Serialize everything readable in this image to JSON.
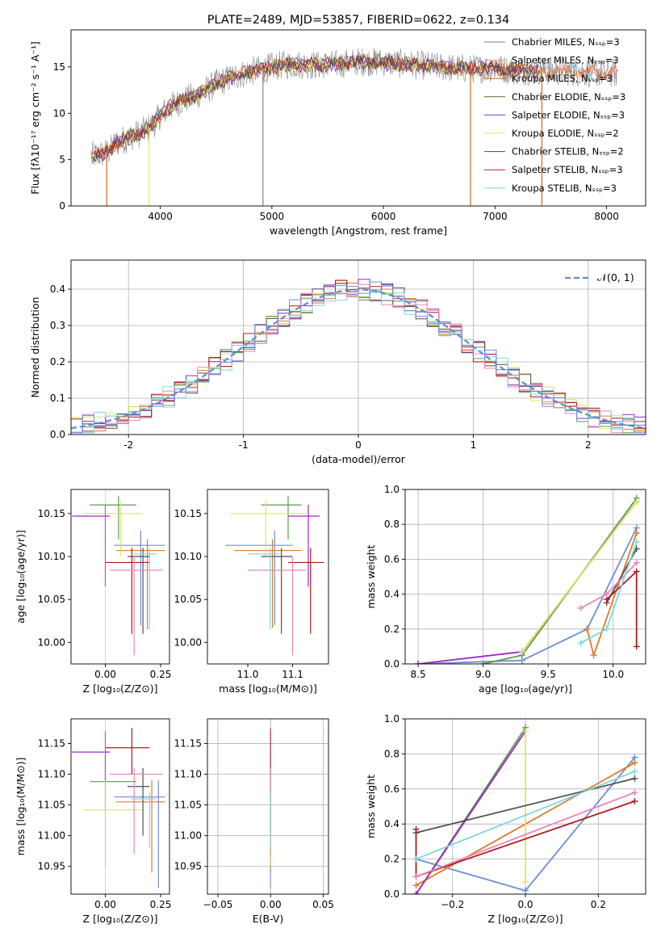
{
  "colors": {
    "c_miles": "#808080",
    "s_miles": "#fa8072",
    "k_miles": "#d2691e",
    "c_elodie": "#556b2f",
    "s_elodie": "#9932cc",
    "k_elodie": "#dfe766",
    "c_stelib": "#4d4d4d",
    "s_stelib": "#b22222",
    "k_stelib": "#7fd3de",
    "blue": "#6b8fd6",
    "orange": "#e07a26",
    "green": "#5c9a52",
    "purple": "#9d27c6",
    "yellow": "#d8e85c",
    "dark": "#505050",
    "red": "#b01a1a",
    "pink": "#ea87b8",
    "cyan": "#82d5e0"
  },
  "chart_data": [
    {
      "id": "spectrum",
      "type": "line",
      "title": "PLATE=2489, MJD=53857, FIBERID=0622, z=0.134",
      "xlabel": "wavelength [Angstrom, rest frame]",
      "ylabel": "Flux [fλ10⁻¹⁷ erg cm⁻² s⁻¹ A⁻¹]",
      "xlim": [
        3200,
        8350
      ],
      "ylim": [
        0,
        19
      ],
      "xticks": [
        4000,
        5000,
        6000,
        7000,
        8000
      ],
      "yticks": [
        0,
        5,
        10,
        15
      ],
      "legend_position": "right",
      "legend": [
        {
          "label": "Chabrier MILES, Nₛₛₚ=3",
          "color": "#808080"
        },
        {
          "label": "Salpeter MILES, Nₛₛₚ=3",
          "color": "#fa8072"
        },
        {
          "label": "Kroupa MILES, Nₛₛₚ=3",
          "color": "#d2691e"
        },
        {
          "label": "Chabrier ELODIE, Nₛₛₚ=3",
          "color": "#556b2f"
        },
        {
          "label": "Salpeter ELODIE, Nₛₛₚ=3",
          "color": "#9932cc"
        },
        {
          "label": "Kroupa ELODIE, Nₛₛₚ=2",
          "color": "#dfe766"
        },
        {
          "label": "Chabrier STELIB, Nₛₛₚ=2",
          "color": "#4d4d4d"
        },
        {
          "label": "Salpeter STELIB, Nₛₛₚ=3",
          "color": "#b22222"
        },
        {
          "label": "Kroupa STELIB, Nₛₛₚ=3",
          "color": "#7fd3de"
        }
      ],
      "continuum": {
        "x": [
          3380,
          3450,
          3500,
          3550,
          3600,
          3700,
          3800,
          3850,
          3900,
          3950,
          4000,
          4100,
          4200,
          4300,
          4400,
          4500,
          4600,
          4700,
          4800,
          4900,
          5000,
          5100,
          5200,
          5400,
          5600,
          5800,
          6000,
          6200,
          6400,
          6600,
          6800,
          7000,
          7200,
          7400,
          7600,
          7800,
          8000,
          8100
        ],
        "y": [
          5.4,
          5.5,
          5.7,
          6.0,
          6.8,
          7.3,
          7.8,
          8.1,
          8.5,
          9.0,
          9.8,
          10.8,
          11.4,
          11.8,
          12.4,
          13.2,
          13.7,
          14.1,
          14.5,
          14.7,
          15.0,
          15.2,
          15.3,
          15.2,
          15.3,
          15.6,
          15.5,
          15.3,
          15.1,
          14.9,
          14.8,
          14.9,
          14.6,
          14.6,
          14.5,
          14.4,
          14.3,
          14.3
        ]
      },
      "spikes_down": [
        3520,
        3900,
        4920,
        6780,
        7420
      ],
      "noise_start": 3380,
      "noise_end": 8100
    },
    {
      "id": "residuals",
      "type": "histogram",
      "xlabel": "(data-model)/error",
      "ylabel": "Normed distribution",
      "xlim": [
        -2.5,
        2.5
      ],
      "ylim": [
        0,
        0.48
      ],
      "xticks": [
        -2,
        -1,
        0,
        1,
        2
      ],
      "yticks": [
        0.0,
        0.1,
        0.2,
        0.3,
        0.4
      ],
      "legend": [
        {
          "label": "𝒩(0, 1)",
          "color": "#5b8fd6"
        }
      ],
      "legend_position": "top-right",
      "bin_width": 0.1,
      "series_count": 9,
      "gaussian": {
        "mean": 0,
        "sigma": 1
      }
    },
    {
      "id": "age_vs_Z",
      "type": "errorbar",
      "xlabel": "Z [log₁₀(Z/Z⊙)]",
      "ylabel": "age  [log₁₀(age/yr)]",
      "xlim": [
        -0.155,
        0.29
      ],
      "ylim": [
        9.975,
        10.178
      ],
      "xticks": [
        0.0,
        0.25
      ],
      "xticklabels": [
        "0.00",
        "0.25"
      ],
      "yticks": [
        10.0,
        10.05,
        10.1,
        10.15
      ],
      "yticklabels": [
        "10.00",
        "10.05",
        "10.10",
        "10.15"
      ],
      "points": [
        {
          "x": 0.16,
          "y": 10.113,
          "xlo": 0.04,
          "xhi": 0.27,
          "ylo": 10.02,
          "yhi": 10.13,
          "color": "#6b8fd6"
        },
        {
          "x": 0.19,
          "y": 10.107,
          "xlo": 0.05,
          "xhi": 0.27,
          "ylo": 10.015,
          "yhi": 10.12,
          "color": "#e07a26"
        },
        {
          "x": 0.06,
          "y": 10.16,
          "xlo": -0.07,
          "xhi": 0.14,
          "ylo": 10.12,
          "yhi": 10.17,
          "color": "#5c9a52"
        },
        {
          "x": 0.0,
          "y": 10.147,
          "xlo": -0.15,
          "xhi": 0.02,
          "ylo": 10.065,
          "yhi": 10.16,
          "color": "#9d27c6"
        },
        {
          "x": 0.07,
          "y": 10.15,
          "xlo": -0.1,
          "xhi": 0.17,
          "ylo": 10.1,
          "yhi": 10.165,
          "color": "#d8e85c"
        },
        {
          "x": 0.17,
          "y": 10.1,
          "xlo": 0.1,
          "xhi": 0.2,
          "ylo": 10.01,
          "yhi": 10.11,
          "color": "#505050"
        },
        {
          "x": 0.12,
          "y": 10.093,
          "xlo": 0.0,
          "xhi": 0.2,
          "ylo": 10.01,
          "yhi": 10.11,
          "color": "#b01a1a"
        },
        {
          "x": 0.13,
          "y": 10.084,
          "xlo": 0.02,
          "xhi": 0.26,
          "ylo": 9.985,
          "yhi": 10.1,
          "color": "#ea87b8"
        },
        {
          "x": 0.2,
          "y": 10.103,
          "xlo": 0.12,
          "xhi": 0.23,
          "ylo": 10.015,
          "yhi": 10.11,
          "color": "#82d5e0"
        }
      ]
    },
    {
      "id": "age_vs_mass",
      "type": "errorbar",
      "xlabel": "mass [log₁₀(M/M⊙)]",
      "ylabel": "",
      "xlim": [
        10.91,
        11.18
      ],
      "ylim": [
        9.975,
        10.178
      ],
      "xticks": [
        11.0,
        11.1
      ],
      "xticklabels": [
        "11.0",
        "11.1"
      ],
      "yticks": [
        10.0,
        10.05,
        10.1,
        10.15
      ],
      "yticklabels": [
        "10.00",
        "10.05",
        "10.10",
        "10.15"
      ],
      "points": [
        {
          "x": 11.06,
          "y": 10.113,
          "xlo": 10.95,
          "xhi": 11.1,
          "ylo": 10.02,
          "yhi": 10.13,
          "color": "#6b8fd6"
        },
        {
          "x": 11.055,
          "y": 10.107,
          "xlo": 10.97,
          "xhi": 11.12,
          "ylo": 10.017,
          "yhi": 10.12,
          "color": "#e07a26"
        },
        {
          "x": 11.09,
          "y": 10.16,
          "xlo": 11.03,
          "xhi": 11.12,
          "ylo": 10.12,
          "yhi": 10.17,
          "color": "#5c9a52"
        },
        {
          "x": 11.135,
          "y": 10.147,
          "xlo": 11.09,
          "xhi": 11.16,
          "ylo": 10.065,
          "yhi": 10.16,
          "color": "#9d27c6"
        },
        {
          "x": 11.04,
          "y": 10.15,
          "xlo": 10.96,
          "xhi": 11.13,
          "ylo": 10.1,
          "yhi": 10.165,
          "color": "#d8e85c"
        },
        {
          "x": 11.075,
          "y": 10.1,
          "xlo": 11.03,
          "xhi": 11.1,
          "ylo": 10.01,
          "yhi": 10.11,
          "color": "#505050"
        },
        {
          "x": 11.14,
          "y": 10.093,
          "xlo": 11.09,
          "xhi": 11.17,
          "ylo": 10.01,
          "yhi": 10.11,
          "color": "#b01a1a"
        },
        {
          "x": 11.1,
          "y": 10.084,
          "xlo": 11.0,
          "xhi": 11.13,
          "ylo": 9.985,
          "yhi": 10.1,
          "color": "#ea87b8"
        },
        {
          "x": 11.05,
          "y": 10.103,
          "xlo": 11.0,
          "xhi": 11.07,
          "ylo": 10.015,
          "yhi": 10.11,
          "color": "#82d5e0"
        }
      ]
    },
    {
      "id": "weight_vs_age",
      "type": "line",
      "xlabel": "age  [log₁₀(age/yr)]",
      "ylabel": "mass weight",
      "xlim": [
        8.4,
        10.25
      ],
      "ylim": [
        0,
        1.0
      ],
      "xticks": [
        8.5,
        9.0,
        9.5,
        10.0
      ],
      "xticklabels": [
        "8.5",
        "9.0",
        "9.5",
        "10.0"
      ],
      "yticks": [
        0.0,
        0.2,
        0.4,
        0.6,
        0.8,
        1.0
      ],
      "yticklabels": [
        "0.0",
        "0.2",
        "0.4",
        "0.6",
        "0.8",
        "1.0"
      ],
      "series": [
        {
          "color": "#6b8fd6",
          "x": [
            8.5,
            9.3,
            9.8,
            10.18
          ],
          "y": [
            0.0,
            0.02,
            0.2,
            0.78
          ]
        },
        {
          "color": "#e07a26",
          "x": [
            9.8,
            9.85,
            10.18
          ],
          "y": [
            0.2,
            0.05,
            0.75
          ]
        },
        {
          "color": "#5c9a52",
          "x": [
            9.0,
            9.3,
            10.18
          ],
          "y": [
            0.0,
            0.05,
            0.95
          ]
        },
        {
          "color": "#9d27c6",
          "x": [
            8.5,
            9.3,
            10.18
          ],
          "y": [
            0.0,
            0.07,
            0.93
          ]
        },
        {
          "color": "#d8e85c",
          "x": [
            9.3,
            10.18
          ],
          "y": [
            0.07,
            0.93
          ]
        },
        {
          "color": "#505050",
          "x": [
            9.95,
            10.18
          ],
          "y": [
            0.35,
            0.66
          ]
        },
        {
          "color": "#b01a1a",
          "x": [
            9.95,
            10.18,
            10.18
          ],
          "y": [
            0.37,
            0.53,
            0.1
          ]
        },
        {
          "color": "#ea87b8",
          "x": [
            9.75,
            9.95,
            10.18
          ],
          "y": [
            0.32,
            0.4,
            0.58
          ]
        },
        {
          "color": "#82d5e0",
          "x": [
            9.75,
            9.95,
            10.18
          ],
          "y": [
            0.12,
            0.2,
            0.7
          ]
        }
      ]
    },
    {
      "id": "mass_vs_Z",
      "type": "errorbar",
      "xlabel": "Z [log₁₀(Z/Z⊙)]",
      "ylabel": "mass [log₁₀(M/M⊙)]",
      "xlim": [
        -0.155,
        0.29
      ],
      "ylim": [
        10.905,
        11.19
      ],
      "xticks": [
        0.0,
        0.25
      ],
      "xticklabels": [
        "0.00",
        "0.25"
      ],
      "yticks": [
        10.95,
        11.0,
        11.05,
        11.1,
        11.15
      ],
      "yticklabels": [
        "10.95",
        "11.00",
        "11.05",
        "11.10",
        "11.15"
      ],
      "points": [
        {
          "x": 0.24,
          "y": 11.063,
          "xlo": 0.04,
          "xhi": 0.27,
          "ylo": 10.915,
          "yhi": 11.09,
          "color": "#6b8fd6"
        },
        {
          "x": 0.21,
          "y": 11.055,
          "xlo": 0.05,
          "xhi": 0.27,
          "ylo": 10.94,
          "yhi": 11.09,
          "color": "#e07a26"
        },
        {
          "x": 0.0,
          "y": 11.088,
          "xlo": -0.07,
          "xhi": 0.14,
          "ylo": 11.05,
          "yhi": 11.13,
          "color": "#5c9a52"
        },
        {
          "x": 0.0,
          "y": 11.136,
          "xlo": -0.15,
          "xhi": 0.02,
          "ylo": 11.09,
          "yhi": 11.17,
          "color": "#9d27c6"
        },
        {
          "x": 0.0,
          "y": 11.042,
          "xlo": -0.1,
          "xhi": 0.17,
          "ylo": 10.95,
          "yhi": 11.09,
          "color": "#d8e85c"
        },
        {
          "x": 0.17,
          "y": 11.08,
          "xlo": 0.1,
          "xhi": 0.2,
          "ylo": 11.0,
          "yhi": 11.11,
          "color": "#505050"
        },
        {
          "x": 0.12,
          "y": 11.143,
          "xlo": 0.0,
          "xhi": 0.2,
          "ylo": 11.1,
          "yhi": 11.175,
          "color": "#b01a1a"
        },
        {
          "x": 0.13,
          "y": 11.1,
          "xlo": 0.02,
          "xhi": 0.26,
          "ylo": 10.97,
          "yhi": 11.11,
          "color": "#ea87b8"
        },
        {
          "x": 0.2,
          "y": 11.06,
          "xlo": 0.12,
          "xhi": 0.23,
          "ylo": 10.98,
          "yhi": 11.07,
          "color": "#82d5e0"
        }
      ]
    },
    {
      "id": "mass_vs_ebv",
      "type": "errorbar",
      "xlabel": "E(B-V)",
      "ylabel": "",
      "xlim": [
        -0.06,
        0.055
      ],
      "ylim": [
        10.905,
        11.19
      ],
      "xticks": [
        -0.05,
        0.0,
        0.05
      ],
      "xticklabels": [
        "−0.05",
        "0.00",
        "0.05"
      ],
      "yticks": [
        10.95,
        11.0,
        11.05,
        11.1,
        11.15
      ],
      "yticklabels": [
        "10.95",
        "11.00",
        "11.05",
        "11.10",
        "11.15"
      ],
      "points": [
        {
          "x": 0.0,
          "y": 11.063,
          "xlo": 0.0,
          "xhi": 0.0,
          "ylo": 10.915,
          "yhi": 11.09,
          "color": "#6b8fd6"
        },
        {
          "x": 0.0,
          "y": 11.055,
          "xlo": 0.0,
          "xhi": 0.0,
          "ylo": 10.94,
          "yhi": 11.09,
          "color": "#e07a26"
        },
        {
          "x": 0.0,
          "y": 11.088,
          "xlo": 0.0,
          "xhi": 0.0,
          "ylo": 11.05,
          "yhi": 11.13,
          "color": "#5c9a52"
        },
        {
          "x": 0.0,
          "y": 11.136,
          "xlo": 0.0,
          "xhi": 0.0,
          "ylo": 11.09,
          "yhi": 11.17,
          "color": "#9d27c6"
        },
        {
          "x": 0.0,
          "y": 11.042,
          "xlo": 0.0,
          "xhi": 0.0,
          "ylo": 10.95,
          "yhi": 11.09,
          "color": "#d8e85c"
        },
        {
          "x": 0.0,
          "y": 11.08,
          "xlo": 0.0,
          "xhi": 0.0,
          "ylo": 11.0,
          "yhi": 11.11,
          "color": "#505050"
        },
        {
          "x": 0.0,
          "y": 11.143,
          "xlo": 0.0,
          "xhi": 0.0,
          "ylo": 11.1,
          "yhi": 11.175,
          "color": "#b01a1a"
        },
        {
          "x": 0.0,
          "y": 11.1,
          "xlo": 0.0,
          "xhi": 0.0,
          "ylo": 10.97,
          "yhi": 11.11,
          "color": "#ea87b8"
        },
        {
          "x": 0.0,
          "y": 11.06,
          "xlo": 0.0,
          "xhi": 0.0,
          "ylo": 10.98,
          "yhi": 11.07,
          "color": "#82d5e0"
        }
      ]
    },
    {
      "id": "weight_vs_Z",
      "type": "line",
      "xlabel": "Z [log₁₀(Z/Z⊙)]",
      "ylabel": "mass weight",
      "xlim": [
        -0.33,
        0.33
      ],
      "ylim": [
        0,
        1.0
      ],
      "xticks": [
        -0.2,
        0.0,
        0.2
      ],
      "xticklabels": [
        "−0.2",
        "0.0",
        "0.2"
      ],
      "yticks": [
        0.0,
        0.2,
        0.4,
        0.6,
        0.8,
        1.0
      ],
      "yticklabels": [
        "0.0",
        "0.2",
        "0.4",
        "0.6",
        "0.8",
        "1.0"
      ],
      "series": [
        {
          "color": "#6b8fd6",
          "x": [
            -0.3,
            0.0,
            0.3
          ],
          "y": [
            0.2,
            0.02,
            0.78
          ]
        },
        {
          "color": "#e07a26",
          "x": [
            -0.3,
            0.3
          ],
          "y": [
            0.05,
            0.75
          ]
        },
        {
          "color": "#5c9a52",
          "x": [
            -0.3,
            0.0
          ],
          "y": [
            0.0,
            0.95
          ]
        },
        {
          "color": "#9d27c6",
          "x": [
            -0.3,
            0.0
          ],
          "y": [
            0.0,
            0.93
          ]
        },
        {
          "color": "#d8e85c",
          "x": [
            0.0,
            0.0
          ],
          "y": [
            0.07,
            0.93
          ]
        },
        {
          "color": "#505050",
          "x": [
            -0.3,
            0.3
          ],
          "y": [
            0.35,
            0.66
          ]
        },
        {
          "color": "#b01a1a",
          "x": [
            -0.3,
            -0.3,
            0.3
          ],
          "y": [
            0.37,
            0.1,
            0.53
          ]
        },
        {
          "color": "#ea87b8",
          "x": [
            -0.3,
            0.3
          ],
          "y": [
            0.1,
            0.58
          ]
        },
        {
          "color": "#82d5e0",
          "x": [
            -0.3,
            0.3
          ],
          "y": [
            0.2,
            0.7
          ]
        }
      ]
    }
  ]
}
